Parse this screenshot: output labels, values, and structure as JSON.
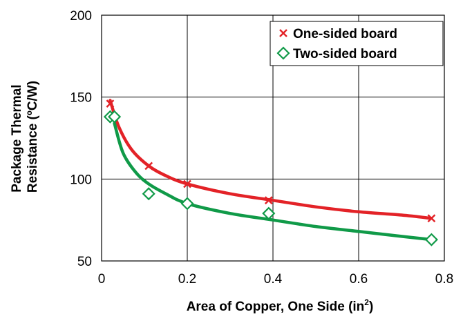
{
  "chart_data": {
    "type": "scatter",
    "xlabel": {
      "text": "Area of Copper, One Side (in",
      "sup": "2",
      "tail": ")"
    },
    "ylabel": [
      "Package Thermal",
      "Resistance (ºC/W)"
    ],
    "xlim": [
      0,
      0.8
    ],
    "ylim": [
      50,
      200
    ],
    "x_ticks": [
      "0",
      "0.2",
      "0.4",
      "0.6",
      "0.8"
    ],
    "x_tick_values": [
      0,
      0.2,
      0.4,
      0.6,
      0.8
    ],
    "y_ticks": [
      "50",
      "100",
      "150",
      "200"
    ],
    "y_tick_values": [
      50,
      100,
      150,
      200
    ],
    "grid": true,
    "legend_position": "top-right",
    "series": [
      {
        "name": "One-sided board",
        "marker": "x",
        "color": "#e32227",
        "points": [
          [
            0.02,
            146
          ],
          [
            0.11,
            108
          ],
          [
            0.2,
            97
          ],
          [
            0.39,
            87
          ],
          [
            0.77,
            76
          ]
        ],
        "fit_curve": [
          [
            0.02,
            148
          ],
          [
            0.04,
            132
          ],
          [
            0.07,
            118
          ],
          [
            0.11,
            108
          ],
          [
            0.15,
            102
          ],
          [
            0.2,
            97
          ],
          [
            0.3,
            91
          ],
          [
            0.4,
            87
          ],
          [
            0.5,
            83
          ],
          [
            0.6,
            80
          ],
          [
            0.7,
            78
          ],
          [
            0.77,
            76
          ]
        ]
      },
      {
        "name": "Two-sided board",
        "marker": "diamond",
        "color": "#109a48",
        "points": [
          [
            0.02,
            138
          ],
          [
            0.03,
            138
          ],
          [
            0.11,
            91
          ],
          [
            0.2,
            85
          ],
          [
            0.39,
            79
          ],
          [
            0.77,
            63
          ]
        ],
        "fit_curve": [
          [
            0.03,
            134
          ],
          [
            0.05,
            116
          ],
          [
            0.08,
            104
          ],
          [
            0.11,
            97
          ],
          [
            0.15,
            91
          ],
          [
            0.2,
            85
          ],
          [
            0.3,
            79
          ],
          [
            0.4,
            75
          ],
          [
            0.5,
            71
          ],
          [
            0.6,
            68
          ],
          [
            0.7,
            65
          ],
          [
            0.77,
            63
          ]
        ]
      }
    ]
  }
}
